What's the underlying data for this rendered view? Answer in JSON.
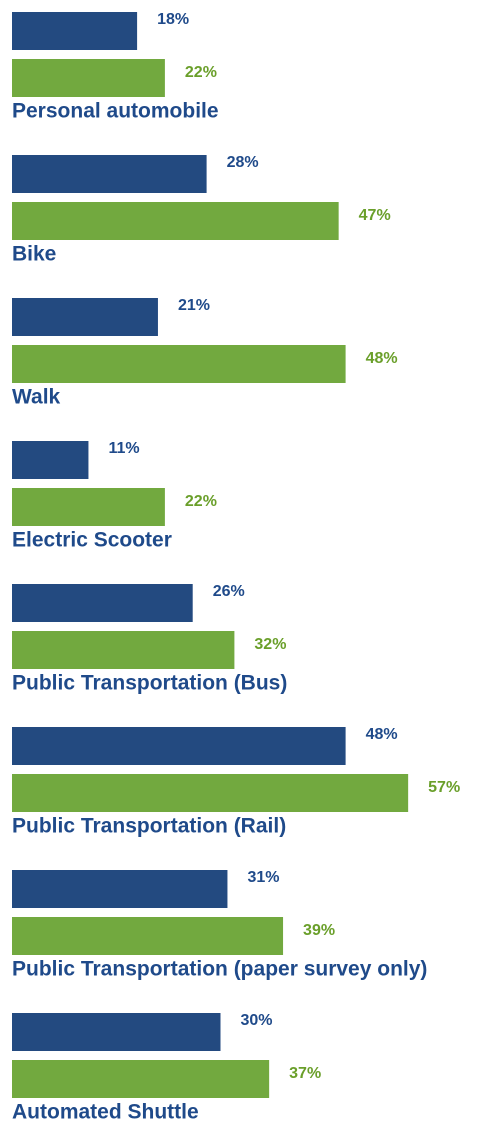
{
  "chart_data": {
    "type": "bar",
    "orientation": "horizontal",
    "categories": [
      "Personal automobile",
      "Bike",
      "Walk",
      "Electric Scooter",
      "Public Transportation (Bus)",
      "Public Transportation (Rail)",
      "Public Transportation (paper survey only)",
      "Automated Shuttle"
    ],
    "series": [
      {
        "color": "#234a80",
        "label_color": "#1f4a8a",
        "values": [
          18,
          28,
          21,
          11,
          26,
          48,
          31,
          30
        ],
        "value_labels": [
          "18%",
          "28%",
          "21%",
          "11%",
          "26%",
          "48%",
          "31%",
          "30%"
        ]
      },
      {
        "color": "#72a93f",
        "label_color": "#6a9f2a",
        "values": [
          22,
          47,
          48,
          22,
          32,
          57,
          39,
          37
        ],
        "value_labels": [
          "22%",
          "47%",
          "48%",
          "22%",
          "32%",
          "57%",
          "39%",
          "37%"
        ]
      }
    ]
  }
}
